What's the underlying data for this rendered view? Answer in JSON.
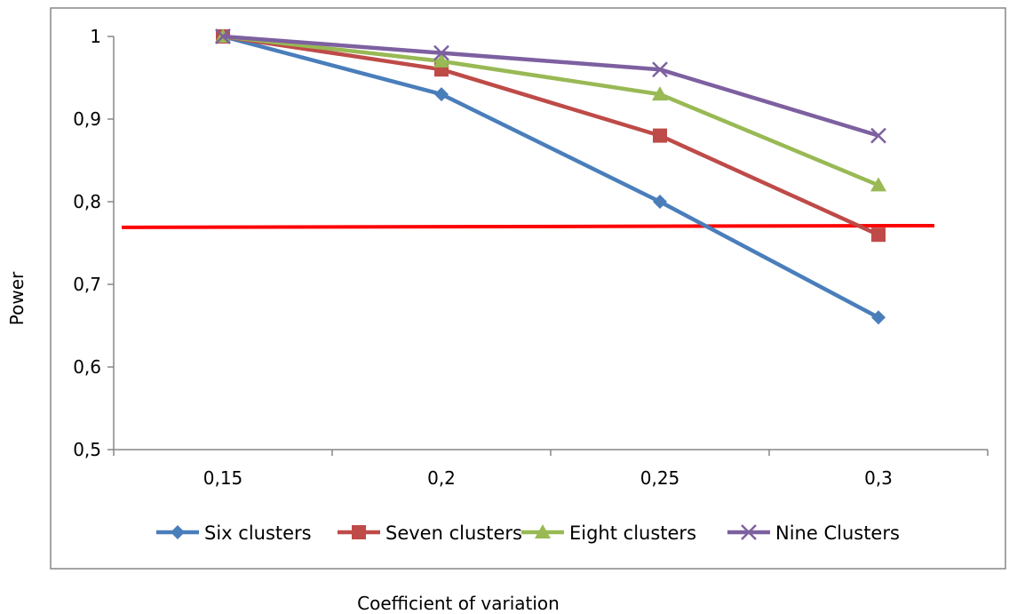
{
  "chart_data": {
    "type": "line",
    "title": "",
    "xlabel": "Coefficient of variation",
    "ylabel": "Power",
    "categories": [
      "0,15",
      "0,2",
      "0,25",
      "0,3"
    ],
    "ylim": [
      0.5,
      1
    ],
    "yticks": [
      0.5,
      0.6,
      0.7,
      0.8,
      0.9,
      1
    ],
    "ytick_labels": [
      "0,5",
      "0,6",
      "0,7",
      "0,8",
      "0,9",
      "1"
    ],
    "grid": false,
    "legend_position": "bottom",
    "series": [
      {
        "name": "Six clusters",
        "values": [
          1.0,
          0.93,
          0.8,
          0.66
        ],
        "color": "#4A7EBB",
        "marker": "diamond"
      },
      {
        "name": "Seven clusters",
        "values": [
          1.0,
          0.96,
          0.88,
          0.76
        ],
        "color": "#BE4B48",
        "marker": "square"
      },
      {
        "name": "Eight clusters",
        "values": [
          1.0,
          0.97,
          0.93,
          0.82
        ],
        "color": "#98B954",
        "marker": "triangle"
      },
      {
        "name": "Nine Clusters",
        "values": [
          1.0,
          0.98,
          0.96,
          0.88
        ],
        "color": "#7D60A0",
        "marker": "x"
      }
    ],
    "reference_line": {
      "y_start": 0.769,
      "y_end": 0.771,
      "color": "#FF0000"
    }
  }
}
